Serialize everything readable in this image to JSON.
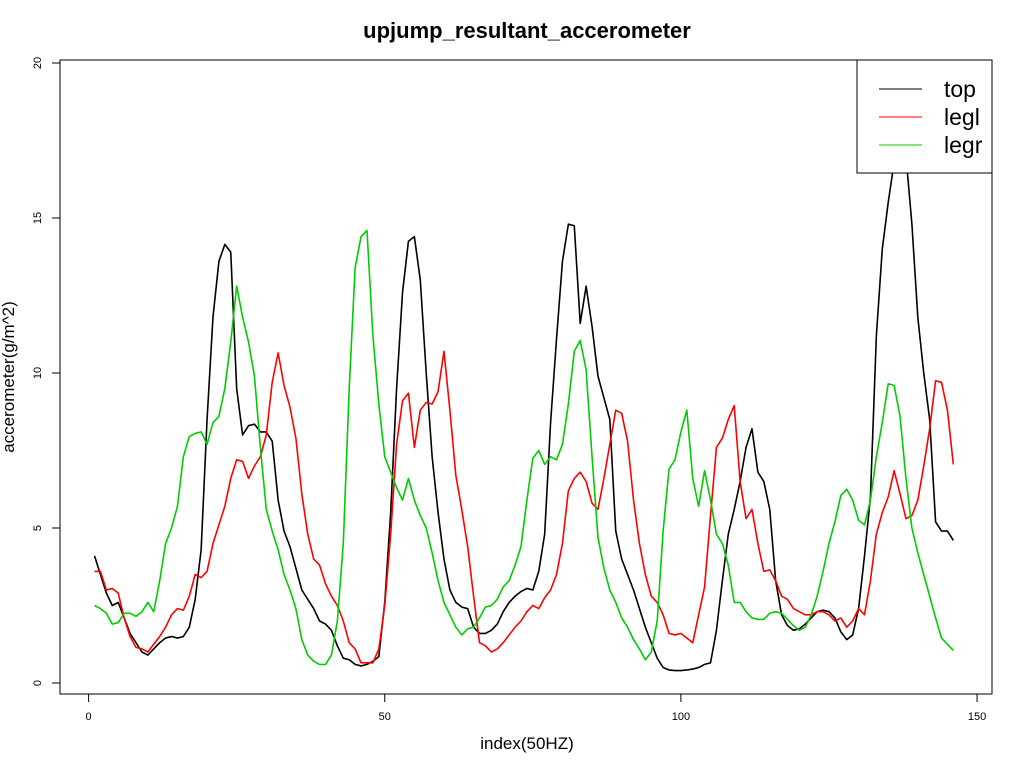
{
  "chart_data": {
    "type": "line",
    "title": "upjump_resultant_accerometer",
    "xlabel": "index(50HZ)",
    "ylabel": "accerometer(g/m^2)",
    "xlim": [
      1,
      147
    ],
    "ylim": [
      0,
      20
    ],
    "x_ticks": [
      "0",
      "50",
      "100",
      "150"
    ],
    "y_ticks": [
      "0",
      "5",
      "10",
      "15",
      "20"
    ],
    "grid": false,
    "legend_position": "top-right",
    "series": [
      {
        "name": "top",
        "color": "#000000",
        "values": [
          4.1,
          3.5,
          2.9,
          2.5,
          2.6,
          2.1,
          1.6,
          1.3,
          1.0,
          0.9,
          1.1,
          1.3,
          1.45,
          1.5,
          1.45,
          1.5,
          1.8,
          2.7,
          4.3,
          8.5,
          11.8,
          13.6,
          14.15,
          13.9,
          9.5,
          8.0,
          8.3,
          8.35,
          8.1,
          8.1,
          7.8,
          5.9,
          4.9,
          4.4,
          3.7,
          3.0,
          2.7,
          2.4,
          2.0,
          1.9,
          1.7,
          1.2,
          0.8,
          0.75,
          0.6,
          0.55,
          0.6,
          0.7,
          0.85,
          2.6,
          5.5,
          9.5,
          12.6,
          14.25,
          14.4,
          13.0,
          10.0,
          7.3,
          5.5,
          4.0,
          3.0,
          2.6,
          2.45,
          2.4,
          1.8,
          1.6,
          1.6,
          1.7,
          1.9,
          2.3,
          2.6,
          2.8,
          2.95,
          3.05,
          3.0,
          3.6,
          4.8,
          8.4,
          11.1,
          13.6,
          14.8,
          14.75,
          11.6,
          12.8,
          11.5,
          9.9,
          9.2,
          8.5,
          4.9,
          4.0,
          3.5,
          3.0,
          2.4,
          1.8,
          1.3,
          0.8,
          0.5,
          0.42,
          0.4,
          0.4,
          0.42,
          0.45,
          0.5,
          0.6,
          0.65,
          1.7,
          3.3,
          4.8,
          5.6,
          6.5,
          7.6,
          8.2,
          6.8,
          6.5,
          5.6,
          3.3,
          2.2,
          1.85,
          1.7,
          1.75,
          1.9,
          2.1,
          2.3,
          2.35,
          2.3,
          2.1,
          1.65,
          1.4,
          1.55,
          2.4,
          4.1,
          6.0,
          11.2,
          14.0,
          15.5,
          16.8,
          17.0,
          17.0,
          14.8,
          11.8,
          10.0,
          8.5,
          5.2,
          4.9,
          4.9,
          4.6
        ]
      },
      {
        "name": "legl",
        "color": "#ff0000",
        "values": [
          3.6,
          3.6,
          3.0,
          3.05,
          2.9,
          2.1,
          1.5,
          1.15,
          1.1,
          1.0,
          1.25,
          1.5,
          1.8,
          2.2,
          2.4,
          2.35,
          2.8,
          3.5,
          3.4,
          3.6,
          4.5,
          5.1,
          5.7,
          6.6,
          7.2,
          7.15,
          6.6,
          7.0,
          7.3,
          8.0,
          9.7,
          10.65,
          9.6,
          8.9,
          7.9,
          6.1,
          4.8,
          4.0,
          3.8,
          3.2,
          2.8,
          2.5,
          2.0,
          1.3,
          1.1,
          0.65,
          0.65,
          0.65,
          1.1,
          2.5,
          4.8,
          7.7,
          9.1,
          9.35,
          7.6,
          8.8,
          9.05,
          9.0,
          9.4,
          10.7,
          8.8,
          6.7,
          5.6,
          4.4,
          2.8,
          1.3,
          1.2,
          1.0,
          1.1,
          1.3,
          1.55,
          1.8,
          2.0,
          2.3,
          2.5,
          2.4,
          2.75,
          3.0,
          3.5,
          4.5,
          6.2,
          6.6,
          6.8,
          6.5,
          5.8,
          5.6,
          6.6,
          7.7,
          8.8,
          8.7,
          7.8,
          5.9,
          4.5,
          3.5,
          2.8,
          2.6,
          2.2,
          1.6,
          1.55,
          1.6,
          1.45,
          1.3,
          2.2,
          3.1,
          5.4,
          7.6,
          7.9,
          8.5,
          8.95,
          6.5,
          5.3,
          5.6,
          4.5,
          3.6,
          3.65,
          3.3,
          2.8,
          2.7,
          2.4,
          2.3,
          2.2,
          2.2,
          2.3,
          2.3,
          2.2,
          2.0,
          2.1,
          1.8,
          2.0,
          2.4,
          2.2,
          3.3,
          4.8,
          5.5,
          6.0,
          6.85,
          6.1,
          5.3,
          5.4,
          5.9,
          7.0,
          8.2,
          9.75,
          9.7,
          8.8,
          7.05
        ]
      },
      {
        "name": "legr",
        "color": "#00cd00",
        "values": [
          2.5,
          2.4,
          2.25,
          1.9,
          1.95,
          2.25,
          2.25,
          2.15,
          2.3,
          2.6,
          2.3,
          3.3,
          4.5,
          5.0,
          5.7,
          7.3,
          7.95,
          8.05,
          8.1,
          7.7,
          8.4,
          8.6,
          9.5,
          11.0,
          12.8,
          11.8,
          11.0,
          9.9,
          7.6,
          5.6,
          4.9,
          4.3,
          3.5,
          3.0,
          2.4,
          1.4,
          0.9,
          0.7,
          0.6,
          0.6,
          0.9,
          2.0,
          4.5,
          9.5,
          13.4,
          14.4,
          14.6,
          11.2,
          9.0,
          7.3,
          6.8,
          6.3,
          5.9,
          6.6,
          5.9,
          5.4,
          5.0,
          4.2,
          3.3,
          2.6,
          2.2,
          1.8,
          1.55,
          1.75,
          1.8,
          2.1,
          2.45,
          2.5,
          2.7,
          3.1,
          3.3,
          3.8,
          4.4,
          5.9,
          7.25,
          7.5,
          7.05,
          7.3,
          7.2,
          7.7,
          9.0,
          10.7,
          11.05,
          10.1,
          7.3,
          4.7,
          3.7,
          3.0,
          2.6,
          2.1,
          1.8,
          1.4,
          1.1,
          0.75,
          1.0,
          2.0,
          4.9,
          6.9,
          7.2,
          8.1,
          8.8,
          6.6,
          5.7,
          6.85,
          5.9,
          4.8,
          4.5,
          3.8,
          2.6,
          2.6,
          2.3,
          2.1,
          2.05,
          2.05,
          2.25,
          2.3,
          2.25,
          2.05,
          1.85,
          1.7,
          1.8,
          2.2,
          2.8,
          3.6,
          4.5,
          5.2,
          6.05,
          6.25,
          5.9,
          5.25,
          5.1,
          5.9,
          7.3,
          8.4,
          9.65,
          9.6,
          8.6,
          6.6,
          5.0,
          4.2,
          3.5,
          2.8,
          2.1,
          1.45,
          1.25,
          1.05
        ]
      }
    ]
  }
}
